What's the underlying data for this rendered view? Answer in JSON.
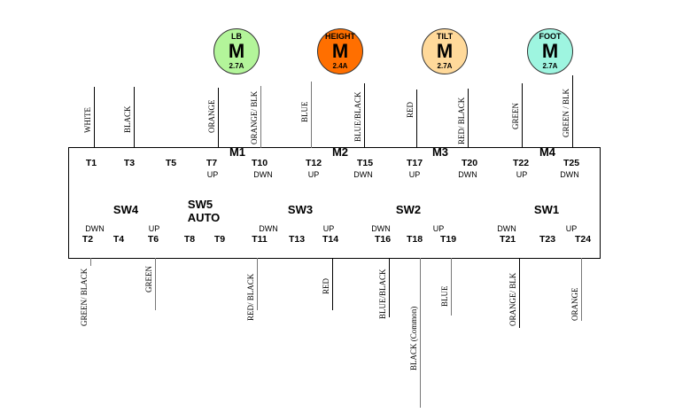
{
  "motors": [
    {
      "name": "LB",
      "symbol": "M",
      "current": "2.7A",
      "color": "#b3f59a"
    },
    {
      "name": "HEIGHT",
      "symbol": "M",
      "current": "2.4A",
      "color": "#ff6f00"
    },
    {
      "name": "TILT",
      "symbol": "M",
      "current": "2.7A",
      "color": "#ffd99a"
    },
    {
      "name": "FOOT",
      "symbol": "M",
      "current": "2.7A",
      "color": "#9ef5e0"
    }
  ],
  "top_wires": [
    "WHITE",
    "BLACK",
    "ORANGE",
    "ORANGE/ BLK",
    "BLUE",
    "BLUE/BLACK",
    "RED",
    "RED/ BLACK",
    "GREEN",
    "GREEN / BLK"
  ],
  "top_terminals": [
    "T1",
    "T3",
    "T5",
    "T7",
    "T10",
    "T12",
    "T15",
    "T17",
    "T20",
    "T22",
    "T25"
  ],
  "motor_labels": [
    "M1",
    "M2",
    "M3",
    "M4"
  ],
  "top_dirs": [
    "UP",
    "DWN",
    "UP",
    "DWN",
    "UP",
    "DWN",
    "UP",
    "DWN"
  ],
  "switch_labels": [
    "SW4",
    "SW5",
    "AUTO",
    "SW3",
    "SW2",
    "SW1"
  ],
  "bottom_dirs": [
    "DWN",
    "UP",
    "DWN",
    "UP",
    "DWN",
    "UP",
    "DWN",
    "UP"
  ],
  "bottom_terminals": [
    "T2",
    "T4",
    "T6",
    "T8",
    "T9",
    "T11",
    "T13",
    "T14",
    "T16",
    "T18",
    "T19",
    "T21",
    "T23",
    "T24"
  ],
  "bottom_wires": [
    "GREEN/ BLACK",
    "GREEN",
    "RED/ BLACK",
    "RED",
    "BLUE/BLACK",
    "BLACK (Common)",
    "BLUE",
    "ORANGE/ BLK",
    "ORANGE"
  ]
}
